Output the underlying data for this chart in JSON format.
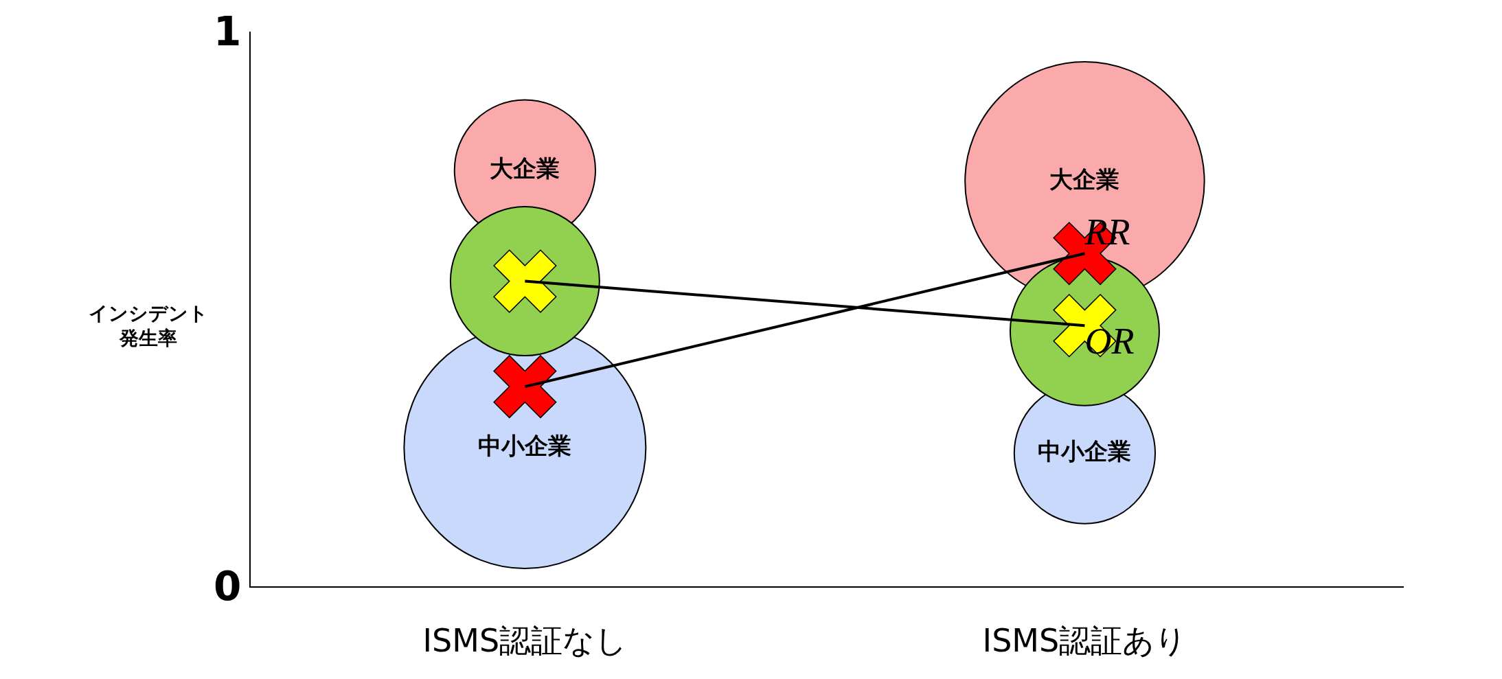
{
  "chart_data": {
    "type": "bubble",
    "ylabel": "インシデント発生率",
    "categories": [
      "ISMS認証なし",
      "ISMS認証あり"
    ],
    "ylim": [
      0,
      1
    ],
    "yticks": [
      0,
      1
    ],
    "series": [
      {
        "name": "大企業",
        "color": "#fbaaab",
        "values": [
          0.75,
          0.73
        ],
        "sizes": [
          0.34,
          0.98
        ]
      },
      {
        "name": "中小企業",
        "color": "#c9d9fb",
        "values": [
          0.25,
          0.24
        ],
        "sizes": [
          1,
          0.34
        ]
      },
      {
        "color": "#92d050",
        "values": [
          0.55,
          0.46
        ],
        "sizes": [
          0.38,
          0.38
        ]
      },
      {
        "type": "scatter",
        "marker": "cross",
        "color": "#ff0000",
        "values": [
          0.36,
          0.6
        ]
      },
      {
        "type": "scatter",
        "marker": "cross",
        "color": "#ffff00",
        "values": [
          0.55,
          0.47
        ]
      },
      {
        "name": "RR",
        "type": "line",
        "color": "#000000",
        "values": [
          0.36,
          0.6
        ]
      },
      {
        "name": "OR",
        "type": "line",
        "color": "#000000",
        "values": [
          0.55,
          0.47
        ]
      }
    ]
  }
}
